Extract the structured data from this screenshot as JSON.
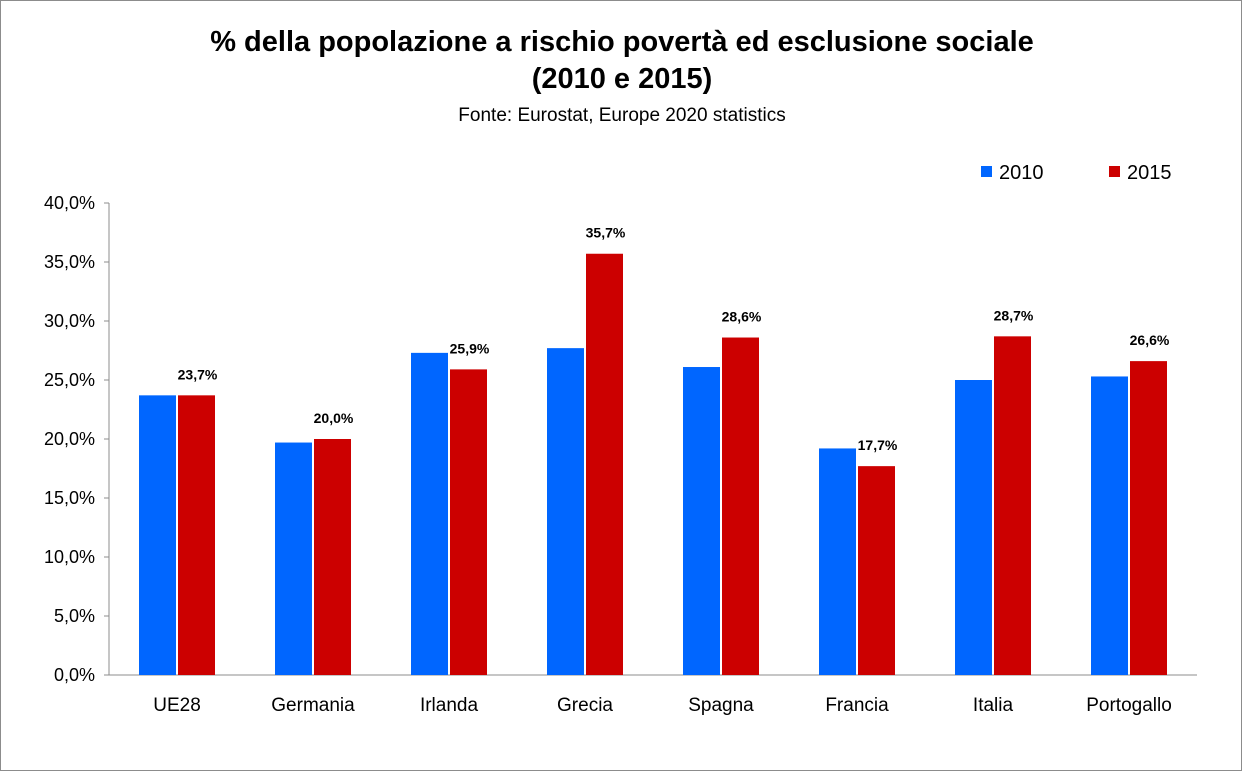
{
  "chart_data": {
    "type": "bar",
    "title": "% della popolazione a rischio povertà ed esclusione sociale",
    "title_line2": "(2010 e 2015)",
    "subtitle": "Fonte: Eurostat, Europe 2020 statistics",
    "xlabel": "",
    "ylabel": "",
    "ylim": [
      0,
      40
    ],
    "ytick_step": 5,
    "ytick_labels": [
      "0,0%",
      "5,0%",
      "10,0%",
      "15,0%",
      "20,0%",
      "25,0%",
      "30,0%",
      "35,0%",
      "40,0%"
    ],
    "grid": false,
    "legend_position": "top-right",
    "categories": [
      "UE28",
      "Germania",
      "Irlanda",
      "Grecia",
      "Spagna",
      "Francia",
      "Italia",
      "Portogallo"
    ],
    "series": [
      {
        "name": "2010",
        "color": "#0066FF",
        "values": [
          23.7,
          19.7,
          27.3,
          27.7,
          26.1,
          19.2,
          25.0,
          25.3
        ],
        "labels": [
          "",
          "",
          "",
          "",
          "",
          "",
          "",
          ""
        ]
      },
      {
        "name": "2015",
        "color": "#CC0000",
        "values": [
          23.7,
          20.0,
          25.9,
          35.7,
          28.6,
          17.7,
          28.7,
          26.6
        ],
        "labels": [
          "23,7%",
          "20,0%",
          "25,9%",
          "35,7%",
          "28,6%",
          "17,7%",
          "28,7%",
          "26,6%"
        ]
      }
    ]
  }
}
